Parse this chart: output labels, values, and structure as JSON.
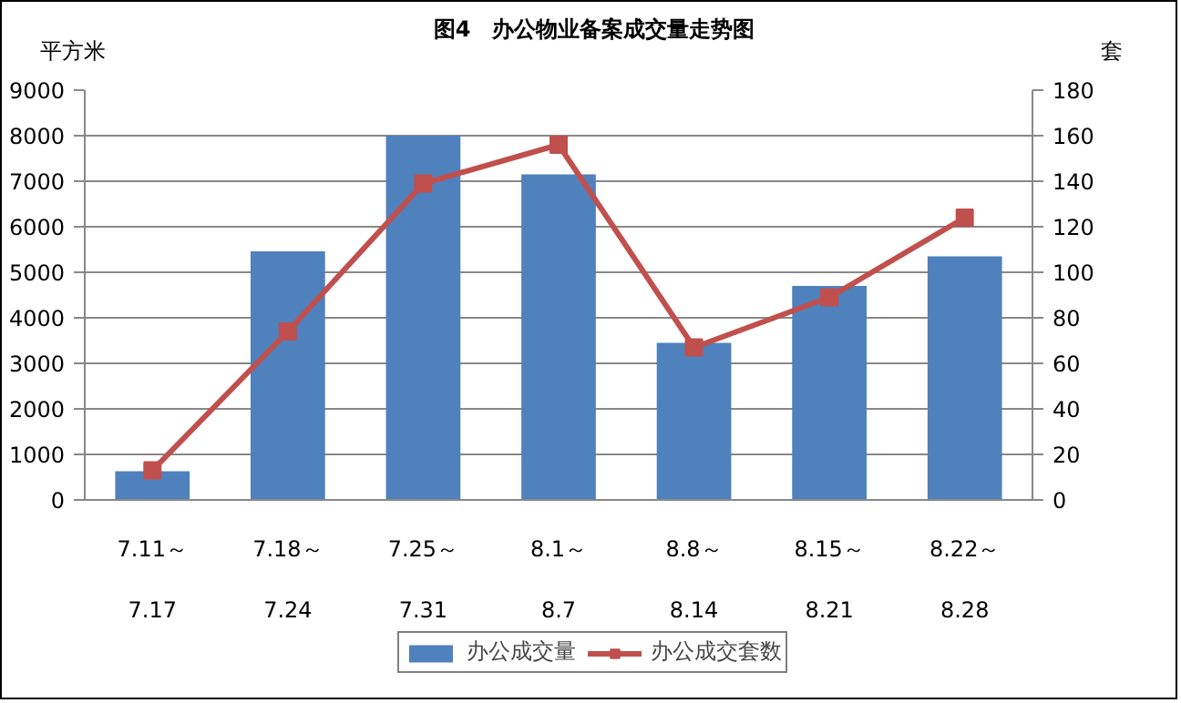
{
  "chart_data": {
    "type": "bar",
    "title": "图4　办公物业备案成交量走势图",
    "ylabel": "平方米",
    "y2label": "套",
    "categories": [
      "7.11～\n\n7.17",
      "7.18～\n\n7.24",
      "7.25～\n\n7.31",
      "8.1～\n\n8.7",
      "8.8～\n\n8.14",
      "8.15～\n\n8.21",
      "8.22～\n\n8.28"
    ],
    "series": [
      {
        "name": "办公成交量",
        "color": "#4f81bd",
        "values": [
          630,
          5460,
          8000,
          7150,
          3450,
          4700,
          5350
        ]
      },
      {
        "name": "办公成交套数",
        "type": "line",
        "axis": "y2",
        "color": "#c0504d",
        "marker": "square",
        "values": [
          13,
          74,
          139,
          156,
          67,
          89,
          124
        ]
      }
    ],
    "ylim": [
      0,
      9000
    ],
    "yticks": [
      0,
      1000,
      2000,
      3000,
      4000,
      5000,
      6000,
      7000,
      8000,
      9000
    ],
    "y2lim": [
      0,
      180
    ],
    "y2ticks": [
      0,
      20,
      40,
      60,
      80,
      100,
      120,
      140,
      160,
      180
    ],
    "grid": "y",
    "legend": "bottom"
  }
}
